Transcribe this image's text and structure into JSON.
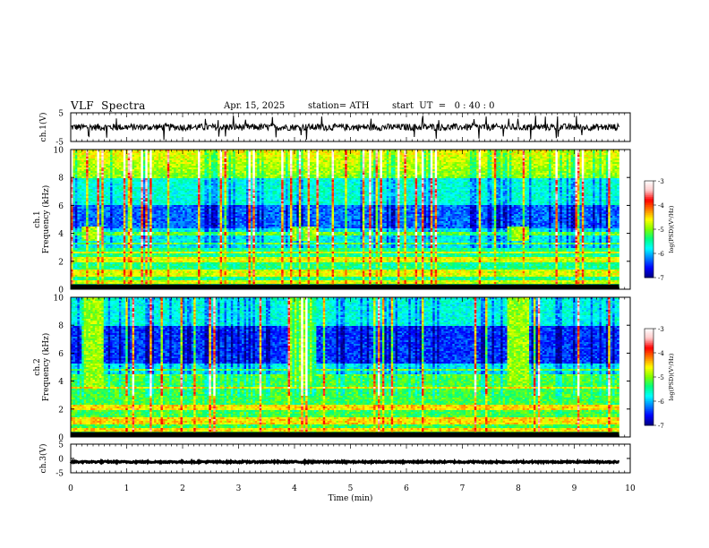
{
  "header": {
    "title": "VLF  Spectra",
    "date": "Apr. 15, 2025",
    "station": "station= ATH",
    "start": "start  UT  =   0 : 40 : 0"
  },
  "chart_data": [
    {
      "type": "line",
      "name": "ch1-waveform",
      "ylabel": "ch.1(V)",
      "ylim": [
        -5,
        5
      ],
      "y_ticks": [
        "5",
        "-5"
      ],
      "xlim": [
        0,
        10
      ],
      "data_extent_min": 9.8,
      "baseline_v": 0.0,
      "noise_amplitude_v": 1.2,
      "spikes_v": [
        -4.5,
        4.0
      ]
    },
    {
      "type": "heatmap",
      "name": "ch1-spectrogram",
      "ylabel": "ch.1\nFrequency  (kHz)",
      "ylabel_lines": [
        "ch.1",
        "Frequency  (kHz)"
      ],
      "ylim": [
        0,
        10
      ],
      "y_ticks": [
        "0",
        "2",
        "4",
        "6",
        "8",
        "10"
      ],
      "xlim": [
        0,
        10
      ],
      "data_extent_min": 9.8,
      "colorbar": {
        "label": "log(PSD)(V²/Hz)",
        "range": [
          -7,
          -3
        ],
        "ticks": [
          "-3",
          "-4",
          "-5",
          "-6",
          "-7"
        ]
      },
      "bursts": [
        {
          "t_start": 0.2,
          "t_end": 0.6,
          "f_low": 3.5,
          "f_high": 4.5
        },
        {
          "t_start": 3.95,
          "t_end": 4.4,
          "f_low": 3.5,
          "f_high": 4.5
        },
        {
          "t_start": 7.8,
          "t_end": 8.2,
          "f_low": 3.5,
          "f_high": 4.5
        }
      ],
      "bands_khz": [
        0.5,
        1.0,
        1.3,
        2.0,
        2.2,
        2.6,
        3.3,
        4.0
      ]
    },
    {
      "type": "heatmap",
      "name": "ch2-spectrogram",
      "ylabel": "ch.2\nFrequency  (kHz)",
      "ylabel_lines": [
        "ch.2",
        "Frequency  (kHz)"
      ],
      "ylim": [
        0,
        10
      ],
      "y_ticks": [
        "0",
        "2",
        "4",
        "6",
        "8",
        "10"
      ],
      "xlim": [
        0,
        10
      ],
      "data_extent_min": 9.8,
      "colorbar": {
        "label": "log(PSD)(V²/Hz)",
        "range": [
          -7,
          -3
        ],
        "ticks": [
          "-3",
          "-4",
          "-5",
          "-6",
          "-7"
        ]
      },
      "bursts": [
        {
          "t_start": 0.2,
          "t_end": 0.6,
          "f_low": 3.5,
          "f_high": 10.0
        },
        {
          "t_start": 3.9,
          "t_end": 4.4,
          "f_low": 3.5,
          "f_high": 10.0
        },
        {
          "t_start": 7.8,
          "t_end": 8.2,
          "f_low": 3.5,
          "f_high": 10.0
        }
      ],
      "bands_khz": [
        0.5,
        1.0,
        1.3,
        2.0,
        2.2,
        3.5,
        4.4,
        4.8
      ]
    },
    {
      "type": "line",
      "name": "ch3-waveform",
      "ylabel": "ch.3(V)",
      "ylim": [
        -5,
        5
      ],
      "y_ticks": [
        "5",
        "0",
        "-5"
      ],
      "xlim": [
        0,
        10
      ],
      "data_extent_min": 9.8,
      "baseline_v": -1.2,
      "noise_amplitude_v": 0.25
    }
  ],
  "x_axis": {
    "label": "Time  (min)",
    "ticks": [
      "0",
      "1",
      "2",
      "3",
      "4",
      "5",
      "6",
      "7",
      "8",
      "9",
      "10"
    ]
  },
  "colors": {
    "frame": "#000000",
    "colormap": [
      "#000080",
      "#0000ff",
      "#0080ff",
      "#00ffff",
      "#00ff80",
      "#80ff00",
      "#ffff00",
      "#ff8000",
      "#ff0000",
      "#ffc8c8",
      "#ffffff"
    ]
  }
}
